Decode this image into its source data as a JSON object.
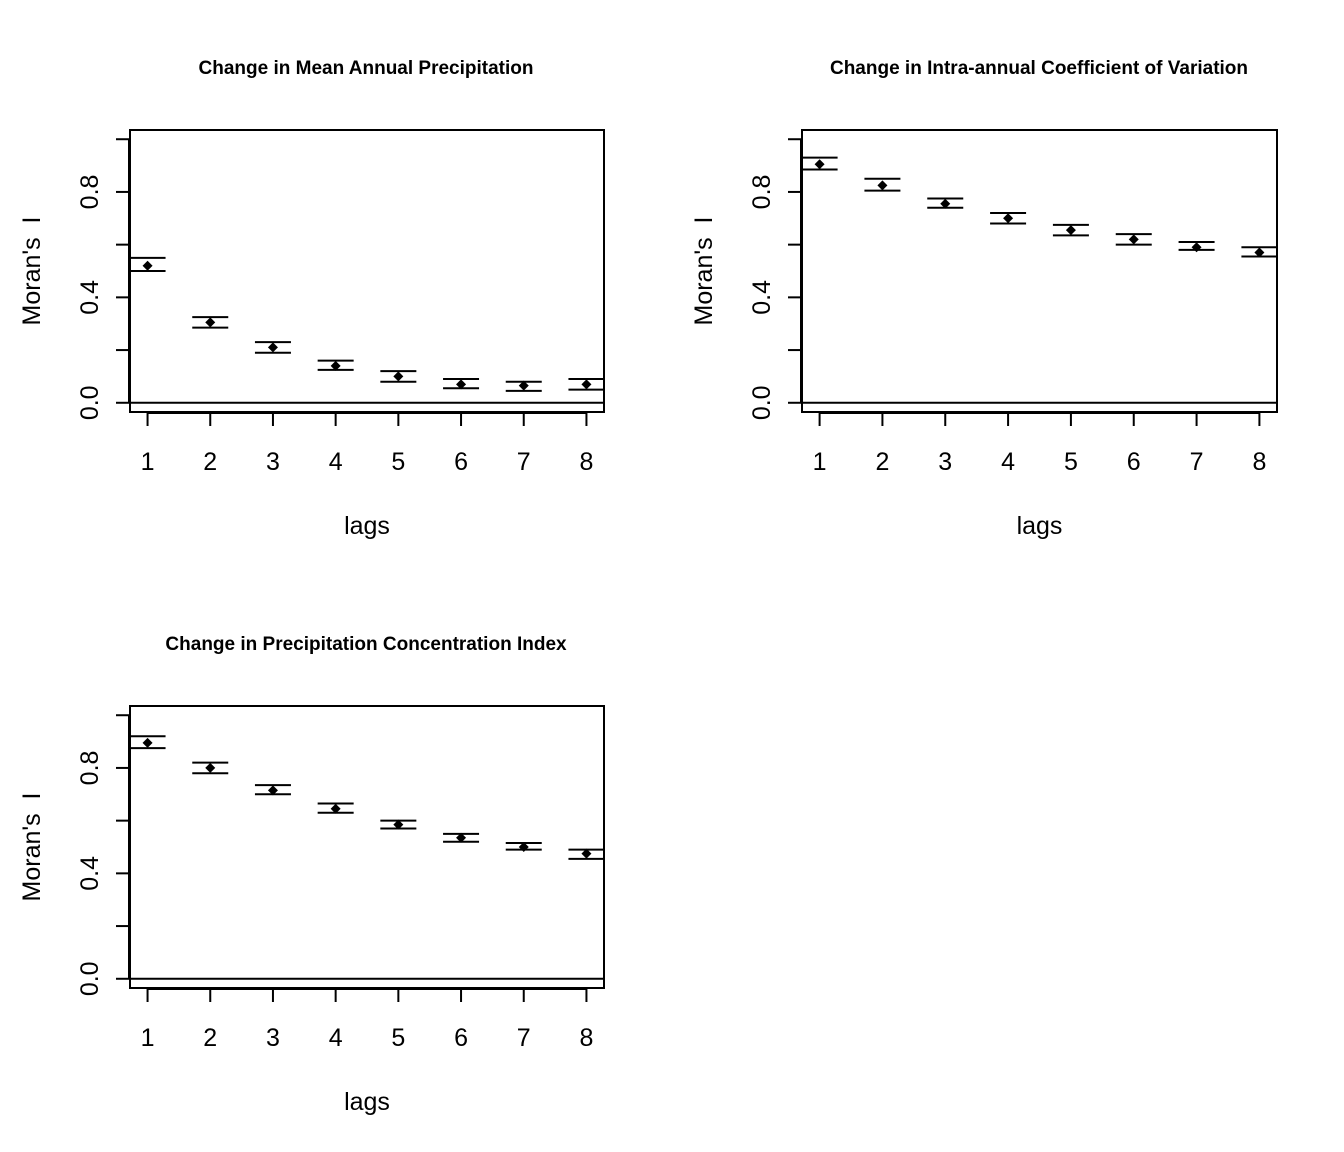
{
  "chart_data": [
    {
      "type": "scatter",
      "title": "Change in Mean Annual Precipitation",
      "xlabel": "lags",
      "ylabel": "Moran's  I",
      "x": [
        1,
        2,
        3,
        4,
        5,
        6,
        7,
        8
      ],
      "x_tick_labels": [
        "1",
        "2",
        "3",
        "4",
        "5",
        "6",
        "7",
        "8"
      ],
      "y_ticks": [
        0.0,
        0.2,
        0.4,
        0.6,
        0.8,
        1.0
      ],
      "y_tick_labels": [
        "0.0",
        "",
        "0.4",
        "",
        "0.8",
        ""
      ],
      "xlim": [
        0.72,
        8.28
      ],
      "ylim": [
        -0.035,
        1.035
      ],
      "reference_line": 0,
      "series": [
        {
          "values": [
            0.52,
            0.305,
            0.21,
            0.14,
            0.1,
            0.07,
            0.065,
            0.07
          ],
          "lower": [
            0.5,
            0.285,
            0.19,
            0.125,
            0.08,
            0.055,
            0.045,
            0.05
          ],
          "upper": [
            0.55,
            0.325,
            0.23,
            0.16,
            0.12,
            0.09,
            0.08,
            0.09
          ]
        }
      ]
    },
    {
      "type": "scatter",
      "title": "Change in Intra-annual Coefficient of Variation",
      "xlabel": "lags",
      "ylabel": "Moran's  I",
      "x": [
        1,
        2,
        3,
        4,
        5,
        6,
        7,
        8
      ],
      "x_tick_labels": [
        "1",
        "2",
        "3",
        "4",
        "5",
        "6",
        "7",
        "8"
      ],
      "y_ticks": [
        0.0,
        0.2,
        0.4,
        0.6,
        0.8,
        1.0
      ],
      "y_tick_labels": [
        "0.0",
        "",
        "0.4",
        "",
        "0.8",
        ""
      ],
      "xlim": [
        0.72,
        8.28
      ],
      "ylim": [
        -0.035,
        1.035
      ],
      "reference_line": 0,
      "series": [
        {
          "values": [
            0.905,
            0.825,
            0.755,
            0.7,
            0.655,
            0.62,
            0.59,
            0.57
          ],
          "lower": [
            0.885,
            0.805,
            0.74,
            0.68,
            0.635,
            0.6,
            0.58,
            0.555
          ],
          "upper": [
            0.93,
            0.85,
            0.775,
            0.72,
            0.675,
            0.64,
            0.61,
            0.59
          ]
        }
      ]
    },
    {
      "type": "scatter",
      "title": "Change in Precipitation Concentration Index",
      "xlabel": "lags",
      "ylabel": "Moran's  I",
      "x": [
        1,
        2,
        3,
        4,
        5,
        6,
        7,
        8
      ],
      "x_tick_labels": [
        "1",
        "2",
        "3",
        "4",
        "5",
        "6",
        "7",
        "8"
      ],
      "y_ticks": [
        0.0,
        0.2,
        0.4,
        0.6,
        0.8,
        1.0
      ],
      "y_tick_labels": [
        "0.0",
        "",
        "0.4",
        "",
        "0.8",
        ""
      ],
      "xlim": [
        0.72,
        8.28
      ],
      "ylim": [
        -0.035,
        1.035
      ],
      "reference_line": 0,
      "series": [
        {
          "values": [
            0.895,
            0.8,
            0.715,
            0.645,
            0.585,
            0.535,
            0.5,
            0.475
          ],
          "lower": [
            0.875,
            0.78,
            0.7,
            0.63,
            0.57,
            0.52,
            0.49,
            0.455
          ],
          "upper": [
            0.92,
            0.82,
            0.735,
            0.665,
            0.6,
            0.55,
            0.515,
            0.49
          ]
        }
      ]
    }
  ]
}
